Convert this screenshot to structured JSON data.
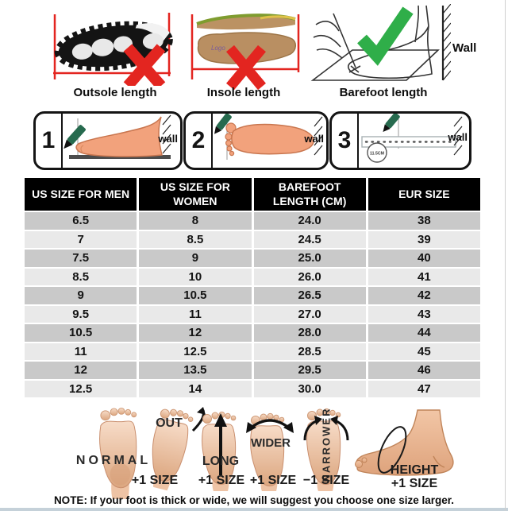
{
  "top_methods": {
    "items": [
      {
        "label": "Outsole length",
        "verdict": "wrong"
      },
      {
        "label": "Insole length",
        "verdict": "wrong"
      },
      {
        "label": "Barefoot length",
        "verdict": "right",
        "wall_label": "Wall"
      }
    ]
  },
  "steps": {
    "items": [
      {
        "number": "1",
        "wall_label": "wall"
      },
      {
        "number": "2",
        "wall_label": "wall"
      },
      {
        "number": "3",
        "wall_label": "wall",
        "circle_label": "11.5CM"
      }
    ]
  },
  "table": {
    "headers": [
      "US SIZE FOR MEN",
      "US SIZE FOR WOMEN",
      "BAREFOOT LENGTH (CM)",
      "EUR SIZE"
    ],
    "rows": [
      [
        "6.5",
        "8",
        "24.0",
        "38"
      ],
      [
        "7",
        "8.5",
        "24.5",
        "39"
      ],
      [
        "7.5",
        "9",
        "25.0",
        "40"
      ],
      [
        "8.5",
        "10",
        "26.0",
        "41"
      ],
      [
        "9",
        "10.5",
        "26.5",
        "42"
      ],
      [
        "9.5",
        "11",
        "27.0",
        "43"
      ],
      [
        "10.5",
        "12",
        "28.0",
        "44"
      ],
      [
        "11",
        "12.5",
        "28.5",
        "45"
      ],
      [
        "12",
        "13.5",
        "29.5",
        "46"
      ],
      [
        "12.5",
        "14",
        "30.0",
        "47"
      ]
    ]
  },
  "fit_guide": {
    "items": [
      {
        "label": "NORMAL",
        "size": ""
      },
      {
        "label": "OUT",
        "size": "+1 SIZE"
      },
      {
        "label": "LONG",
        "size": "+1 SIZE"
      },
      {
        "label": "WIDER",
        "size": "+1 SIZE"
      },
      {
        "label": "NARROWER",
        "size": "−1 SIZE"
      },
      {
        "label": "HEIGHT",
        "size": "+1 SIZE"
      }
    ]
  },
  "note": {
    "text": "NOTE: If your foot is thick or wide, we will suggest you choose one size larger."
  },
  "colors": {
    "red": "#e32520",
    "green": "#2fae49",
    "marker_green": "#266a4e",
    "skin": "#f2a27c",
    "skin_edge": "#c9764f",
    "sole_skin": "#f3cbb1",
    "header_bg": "#000000",
    "row_dark": "#c9c9c9",
    "row_light": "#e9e9e9"
  }
}
